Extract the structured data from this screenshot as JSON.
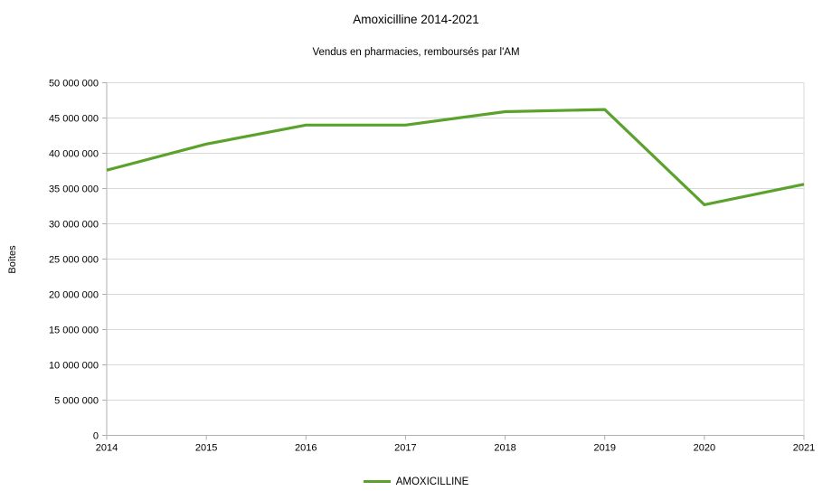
{
  "chart_data": {
    "type": "line",
    "title": "Amoxicilline 2014-2021",
    "subtitle": "Vendus en pharmacies, remboursés par l'AM",
    "xlabel": "",
    "ylabel": "Boîtes",
    "categories": [
      "2014",
      "2015",
      "2016",
      "2017",
      "2018",
      "2019",
      "2020",
      "2021"
    ],
    "series": [
      {
        "name": "AMOXICILLINE",
        "color": "#5aa22c",
        "values": [
          37600000,
          41300000,
          44000000,
          44000000,
          45900000,
          46200000,
          32700000,
          35600000
        ]
      }
    ],
    "ylim": [
      0,
      50000000
    ],
    "ytick_step": 5000000,
    "ytick_labels": [
      "0",
      "5 000 000",
      "10 000 000",
      "15 000 000",
      "20 000 000",
      "25 000 000",
      "30 000 000",
      "35 000 000",
      "40 000 000",
      "45 000 000",
      "50 000 000"
    ],
    "grid": "horizontal",
    "legend_position": "bottom",
    "colors": {
      "background": "#ffffff",
      "gridline": "#d9d9d9",
      "axis": "#b0b0b0",
      "text": "#000000"
    }
  }
}
